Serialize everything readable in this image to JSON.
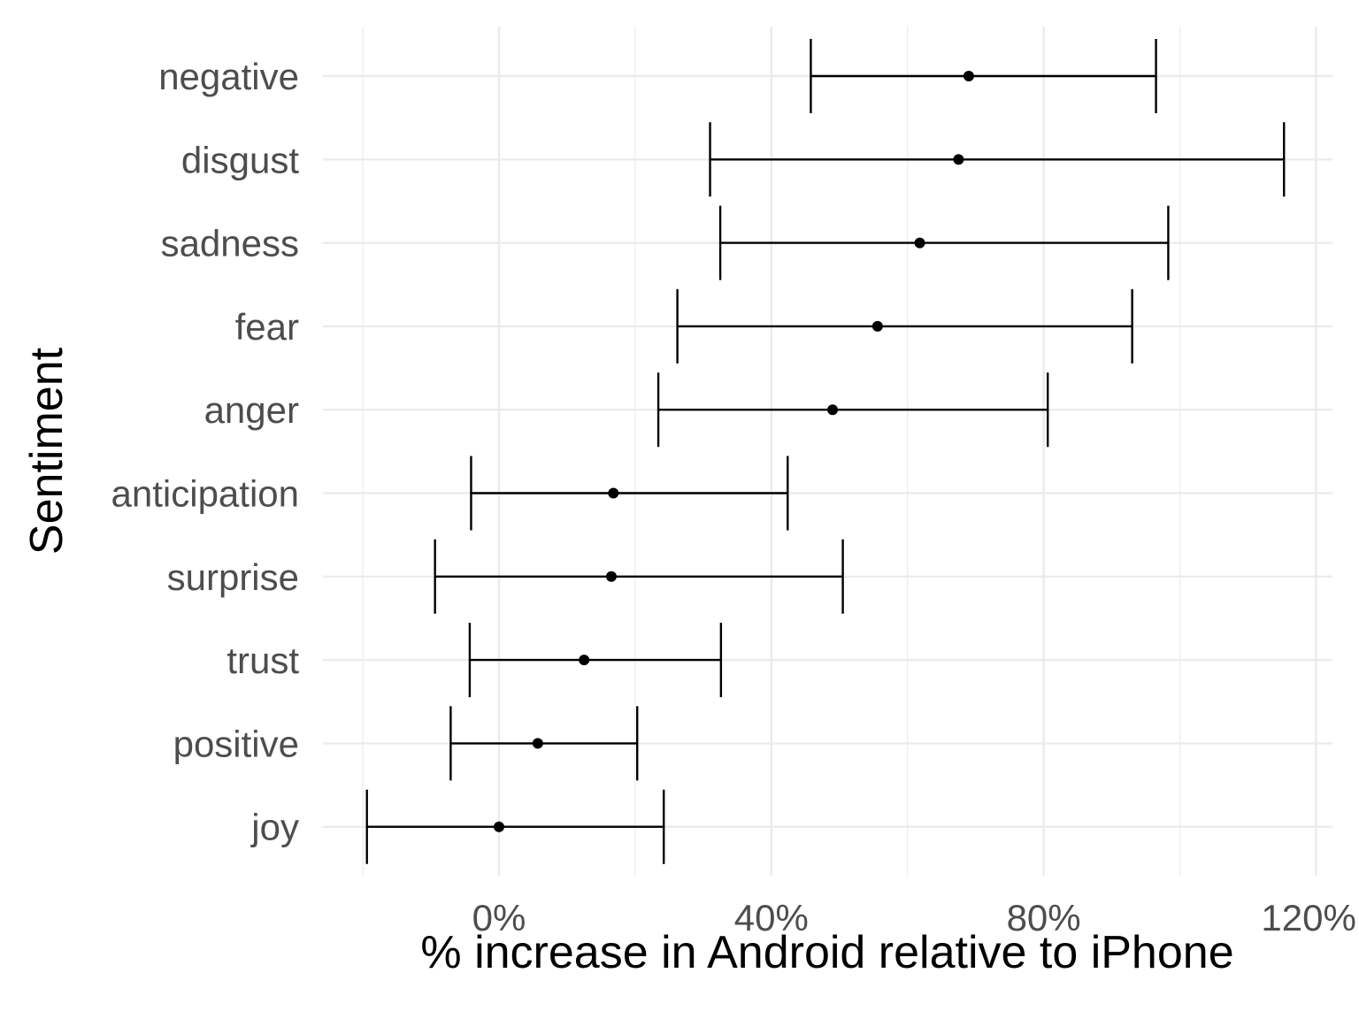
{
  "chart_data": {
    "type": "errorbar",
    "title": "",
    "xlabel": "% increase in Android relative to iPhone",
    "ylabel": "Sentiment",
    "xlim": [
      -0.2,
      1.22
    ],
    "x_ticks": [
      0,
      0.4,
      0.8,
      1.2
    ],
    "x_tick_labels": [
      "0%",
      "40%",
      "80%",
      "120%"
    ],
    "grid": true,
    "categories": [
      "negative",
      "disgust",
      "sadness",
      "fear",
      "anger",
      "anticipation",
      "surprise",
      "trust",
      "positive",
      "joy"
    ],
    "estimate": [
      0.69,
      0.675,
      0.618,
      0.556,
      0.49,
      0.168,
      0.165,
      0.125,
      0.057,
      0.0
    ],
    "conf_low": [
      0.458,
      0.31,
      0.325,
      0.262,
      0.234,
      -0.041,
      -0.094,
      -0.043,
      -0.071,
      -0.194
    ],
    "conf_high": [
      0.965,
      1.153,
      0.983,
      0.93,
      0.806,
      0.424,
      0.505,
      0.326,
      0.203,
      0.242
    ]
  }
}
